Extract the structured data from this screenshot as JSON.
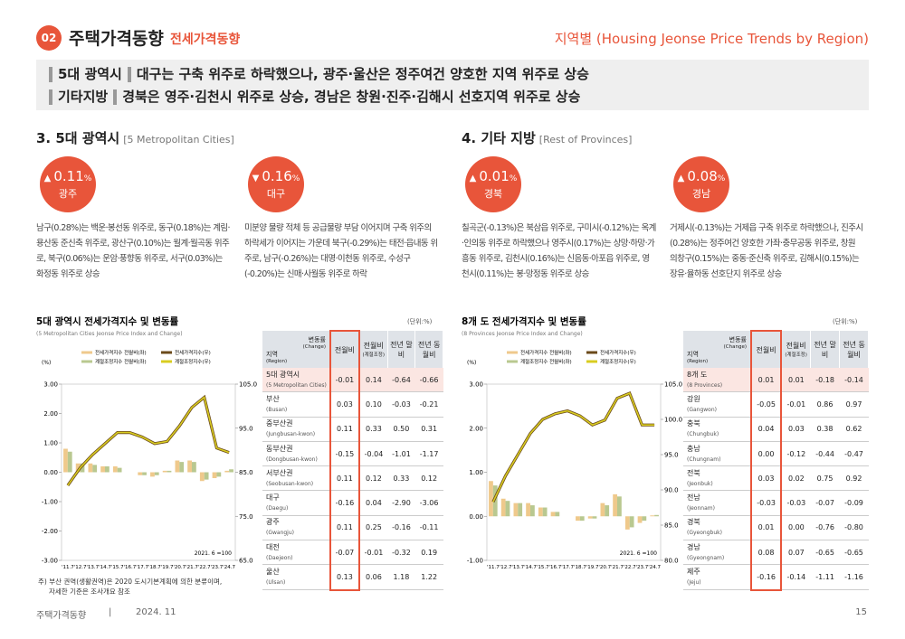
{
  "header": {
    "badge": "02",
    "title": "주택가격동향",
    "subtitle": "전세가격동향",
    "right": "지역별 (Housing Jeonse Price Trends by Region)"
  },
  "summary": [
    {
      "label": "5대 광역시",
      "text": "대구는 구축 위주로 하락했으나, 광주·울산은 정주여건 양호한 지역 위주로 상승"
    },
    {
      "label": "기타지방",
      "text": "경북은 영주·김천시 위주로 상승, 경남은 창원·진주·김해시 선호지역 위주로 상승"
    }
  ],
  "sections": [
    {
      "heading": "3. 5대 광역시",
      "sub": "[5 Metropolitan Cities]",
      "cards": [
        {
          "arrow": "▲",
          "value": "0.11",
          "unit": "%",
          "region": "광주",
          "text": "남구(0.28%)는 백운·봉선동 위주로, 동구(0.18%)는 계림·용산동 준신축 위주로, 광산구(0.10%)는 월계·월곡동 위주로, 북구(0.06%)는 운암·풍향동 위주로, 서구(0.03%)는 화정동 위주로 상승"
        },
        {
          "arrow": "▼",
          "value": "0.16",
          "unit": "%",
          "region": "대구",
          "text": "미분양 물량 적체 등 공급물량 부담 이어지며 구축 위주의 하락세가 이어지는 가운데 북구(-0.29%)는 태전·읍내동 위주로, 남구(-0.26%)는 대명·이천동 위주로, 수성구(-0.20%)는 신매·사월동 위주로 하락"
        }
      ]
    },
    {
      "heading": "4. 기타 지방",
      "sub": "[Rest of Provinces]",
      "cards": [
        {
          "arrow": "▲",
          "value": "0.01",
          "unit": "%",
          "region": "경북",
          "text": "칠곡군(-0.13%)은 북삼읍 위주로, 구미시(-0.12%)는 옥계·인의동 위주로 하락했으나 영주시(0.17%)는 상망·하망·가흥동 위주로, 김천시(0.16%)는 신음동·아포읍 위주로, 영천시(0.11%)는 봉·망정동 위주로 상승"
        },
        {
          "arrow": "▲",
          "value": "0.08",
          "unit": "%",
          "region": "경남",
          "text": "거제시(-0.13%)는 거제읍 구축 위주로 하락했으나, 진주시(0.28%)는 정주여건 양호한 가좌·충무공동 위주로, 창원 의창구(0.15%)는 중동·준신축 위주로, 김해시(0.15%)는 장유·율하동 선호단지 위주로 상승"
        }
      ]
    }
  ],
  "chart_data": [
    {
      "type": "combo",
      "title": "5대 광역시 전세가격지수 및 변동률",
      "subtitle": "(5 Metropolitan Cities Jeonse Price Index and Change)",
      "y_label": "(%)",
      "annotation": "2021. 6 =100",
      "categories": [
        "'11.7",
        "'12.7",
        "'13.7",
        "'14.7",
        "'15.7",
        "'16.7",
        "'17.7",
        "'18.7",
        "'19.7",
        "'20.7",
        "'21.7",
        "'22.7",
        "'23.7",
        "'24.7"
      ],
      "ylim": [
        -3,
        3
      ],
      "yticks": [
        {
          "value": -3,
          "label": "-3.00"
        },
        {
          "value": -2,
          "label": "-2.00"
        },
        {
          "value": -1,
          "label": "-1.00"
        },
        {
          "value": 0,
          "label": "0.00"
        },
        {
          "value": 1,
          "label": "1.00"
        },
        {
          "value": 2,
          "label": "2.00"
        },
        {
          "value": 3,
          "label": "3.00"
        }
      ],
      "y2lim": [
        65,
        105
      ],
      "y2ticks": [
        {
          "value": 65,
          "label": "65.0"
        },
        {
          "value": 75,
          "label": "75.0"
        },
        {
          "value": 85,
          "label": "85.0"
        },
        {
          "value": 95,
          "label": "95.0"
        },
        {
          "value": 105,
          "label": "105.0"
        }
      ],
      "series": [
        {
          "name": "전세가격지수 전월비(좌)",
          "kind": "bar",
          "color": "#efc98c",
          "values": [
            0.8,
            0.3,
            0.3,
            0.2,
            0.2,
            0.0,
            -0.1,
            -0.15,
            0.05,
            0.4,
            0.4,
            -0.3,
            -0.2,
            0.05
          ]
        },
        {
          "name": "계절조정지수 전월비(좌)",
          "kind": "bar",
          "color": "#b9c890",
          "values": [
            0.7,
            0.3,
            0.25,
            0.2,
            0.15,
            0.0,
            -0.1,
            -0.1,
            0.05,
            0.35,
            0.35,
            -0.25,
            -0.15,
            0.1
          ]
        },
        {
          "name": "전세가격지수(우)",
          "kind": "line",
          "axis": "y2",
          "color": "#6b4a1a",
          "values": [
            82,
            86,
            89,
            91.5,
            94,
            94,
            93,
            91.5,
            92,
            95.5,
            99.7,
            102,
            90.5,
            89.5
          ]
        },
        {
          "name": "계절조정지수(우)",
          "kind": "line",
          "axis": "y2",
          "color": "#d8cc20",
          "values": [
            82,
            86,
            89,
            91.5,
            94,
            94,
            93,
            91.5,
            92,
            95.5,
            99.7,
            102,
            90.5,
            89.5
          ]
        }
      ]
    },
    {
      "type": "combo",
      "title": "8개 도 전세가격지수 및 변동률",
      "subtitle": "(8 Provinces Jeonse Price Index and Change)",
      "y_label": "(%)",
      "annotation": "2021. 6 =100",
      "categories": [
        "'11.7",
        "'12.7",
        "'13.7",
        "'14.7",
        "'15.7",
        "'16.7",
        "'17.7",
        "'18.7",
        "'19.7",
        "'20.7",
        "'21.7",
        "'22.7",
        "'23.7",
        "'24.7"
      ],
      "ylim": [
        -1,
        3
      ],
      "yticks": [
        {
          "value": -1,
          "label": "-1.00"
        },
        {
          "value": 0,
          "label": "0.00"
        },
        {
          "value": 1,
          "label": "1.00"
        },
        {
          "value": 2,
          "label": "2.00"
        },
        {
          "value": 3,
          "label": "3.00"
        }
      ],
      "y2lim": [
        80,
        105
      ],
      "y2ticks": [
        {
          "value": 80,
          "label": "80.0"
        },
        {
          "value": 85,
          "label": "85.0"
        },
        {
          "value": 90,
          "label": "90.0"
        },
        {
          "value": 95,
          "label": "95.0"
        },
        {
          "value": 100,
          "label": "100.0"
        },
        {
          "value": 105,
          "label": "105.0"
        }
      ],
      "series": [
        {
          "name": "전세가격지수 전월비(좌)",
          "kind": "bar",
          "color": "#efc98c",
          "values": [
            0.8,
            0.4,
            0.3,
            0.3,
            0.2,
            0.1,
            0.0,
            -0.1,
            -0.05,
            0.3,
            0.5,
            -0.3,
            -0.15,
            0.02
          ]
        },
        {
          "name": "계절조정지수 전월비(좌)",
          "kind": "bar",
          "color": "#b9c890",
          "values": [
            0.7,
            0.35,
            0.3,
            0.25,
            0.2,
            0.1,
            0.0,
            -0.1,
            -0.05,
            0.25,
            0.45,
            -0.25,
            -0.1,
            0.03
          ]
        },
        {
          "name": "전세가격지수(우)",
          "kind": "line",
          "axis": "y2",
          "color": "#6b4a1a",
          "values": [
            88.3,
            92,
            95,
            98,
            100,
            100.8,
            101.2,
            100.5,
            99.2,
            99.9,
            103,
            103.7,
            99.2,
            99.2
          ]
        },
        {
          "name": "계절조정지수(우)",
          "kind": "line",
          "axis": "y2",
          "color": "#d8cc20",
          "values": [
            88.3,
            92,
            95,
            98,
            100,
            100.8,
            101.2,
            100.5,
            99.2,
            99.9,
            103,
            103.7,
            99.2,
            99.2
          ]
        }
      ]
    }
  ],
  "tables": [
    {
      "unit": "(단위:%)",
      "corner_top": "변동률",
      "corner_top_en": "(Change)",
      "corner_bottom": "지역",
      "corner_bottom_en": "(Region)",
      "columns": [
        {
          "label": "전월비"
        },
        {
          "label": "전월비",
          "sub": "(계절조정)"
        },
        {
          "label": "전년 말비"
        },
        {
          "label": "전년 동월비"
        }
      ],
      "rows": [
        {
          "name": "5대 광역시",
          "en": "(5 Metropolitan Cities)",
          "cells": [
            "-0.01",
            "0.14",
            "-0.64",
            "-0.66"
          ]
        },
        {
          "name": "부산",
          "en": "(Busan)",
          "cells": [
            "0.03",
            "0.10",
            "-0.03",
            "-0.21"
          ]
        },
        {
          "name": "중부산권",
          "en": "(Jungbusan-kwon)",
          "cells": [
            "0.11",
            "0.33",
            "0.50",
            "0.31"
          ]
        },
        {
          "name": "동부산권",
          "en": "(Dongbusan-kwon)",
          "cells": [
            "-0.15",
            "-0.04",
            "-1.01",
            "-1.17"
          ]
        },
        {
          "name": "서부산권",
          "en": "(Seobusan-kwon)",
          "cells": [
            "0.11",
            "0.12",
            "0.33",
            "0.12"
          ]
        },
        {
          "name": "대구",
          "en": "(Daegu)",
          "cells": [
            "-0.16",
            "0.04",
            "-2.90",
            "-3.06"
          ]
        },
        {
          "name": "광주",
          "en": "(Gwangju)",
          "cells": [
            "0.11",
            "0.25",
            "-0.16",
            "-0.11"
          ]
        },
        {
          "name": "대전",
          "en": "(Daejeon)",
          "cells": [
            "-0.07",
            "-0.01",
            "-0.32",
            "0.19"
          ]
        },
        {
          "name": "울산",
          "en": "(Ulsan)",
          "cells": [
            "0.13",
            "0.06",
            "1.18",
            "1.22"
          ]
        }
      ]
    },
    {
      "unit": "(단위:%)",
      "corner_top": "변동률",
      "corner_top_en": "(Change)",
      "corner_bottom": "지역",
      "corner_bottom_en": "(Region)",
      "columns": [
        {
          "label": "전월비"
        },
        {
          "label": "전월비",
          "sub": "(계절조정)"
        },
        {
          "label": "전년 말비"
        },
        {
          "label": "전년 동월비"
        }
      ],
      "rows": [
        {
          "name": "8개 도",
          "en": "(8 Provinces)",
          "cells": [
            "0.01",
            "0.01",
            "-0.18",
            "-0.14"
          ]
        },
        {
          "name": "강원",
          "en": "(Gangwon)",
          "cells": [
            "-0.05",
            "-0.01",
            "0.86",
            "0.97"
          ]
        },
        {
          "name": "충북",
          "en": "(Chungbuk)",
          "cells": [
            "0.04",
            "0.03",
            "0.38",
            "0.62"
          ]
        },
        {
          "name": "충남",
          "en": "(Chungnam)",
          "cells": [
            "0.00",
            "-0.12",
            "-0.44",
            "-0.47"
          ]
        },
        {
          "name": "전북",
          "en": "(Jeonbuk)",
          "cells": [
            "0.03",
            "0.02",
            "0.75",
            "0.92"
          ]
        },
        {
          "name": "전남",
          "en": "(Jeonnam)",
          "cells": [
            "-0.03",
            "-0.03",
            "-0.07",
            "-0.09"
          ]
        },
        {
          "name": "경북",
          "en": "(Gyeongbuk)",
          "cells": [
            "0.01",
            "0.00",
            "-0.76",
            "-0.80"
          ]
        },
        {
          "name": "경남",
          "en": "(Gyeongnam)",
          "cells": [
            "0.08",
            "0.07",
            "-0.65",
            "-0.65"
          ]
        },
        {
          "name": "제주",
          "en": "(Jeju)",
          "cells": [
            "-0.16",
            "-0.14",
            "-1.11",
            "-1.16"
          ]
        }
      ]
    }
  ],
  "footnote": [
    "주) 부산 권역(생활권역)은 2020 도시기본계획에 의한 분류이며,",
    "자세한 기준은 조사개요 참조"
  ],
  "footer": {
    "left": "주택가격동향",
    "sep": "|",
    "date": "2024. 11",
    "page": "15"
  }
}
